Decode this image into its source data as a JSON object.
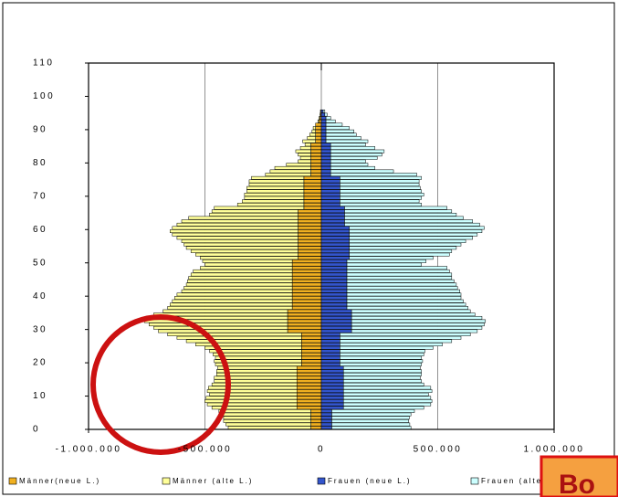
{
  "chart_data": {
    "type": "bar",
    "orientation": "horizontal",
    "stacked": true,
    "grid": true,
    "y": [
      0,
      1,
      2,
      3,
      4,
      5,
      6,
      7,
      8,
      9,
      10,
      11,
      12,
      13,
      14,
      15,
      16,
      17,
      18,
      19,
      20,
      21,
      22,
      23,
      24,
      25,
      26,
      27,
      28,
      29,
      30,
      31,
      32,
      33,
      34,
      35,
      36,
      37,
      38,
      39,
      40,
      41,
      42,
      43,
      44,
      45,
      46,
      47,
      48,
      49,
      50,
      51,
      52,
      53,
      54,
      55,
      56,
      57,
      58,
      59,
      60,
      61,
      62,
      63,
      64,
      65,
      66,
      67,
      68,
      69,
      70,
      71,
      72,
      73,
      74,
      75,
      76,
      77,
      78,
      79,
      80,
      81,
      82,
      83,
      84,
      85,
      86,
      87,
      88,
      89,
      90,
      91,
      92,
      93,
      94,
      95
    ],
    "xlim": [
      -1000000,
      1000000
    ],
    "xticks": [
      {
        "value": -1000000,
        "label": "-1.000.000"
      },
      {
        "value": -500000,
        "label": "-500.000"
      },
      0,
      {
        "value": 500000,
        "label": "500.000"
      },
      {
        "value": 1000000,
        "label": "1.000.000"
      }
    ],
    "ylim": [
      0,
      110
    ],
    "yticks": [
      0,
      10,
      20,
      30,
      40,
      50,
      60,
      70,
      80,
      90,
      100,
      110
    ],
    "series": [
      {
        "name": "Männer(neue L.)",
        "color": "#f0b020",
        "values": [
          -45000,
          -45000,
          -45000,
          -45000,
          -45000,
          -45000,
          -105000,
          -105000,
          -105000,
          -105000,
          -105000,
          -105000,
          -105000,
          -105000,
          -105000,
          -105000,
          -105000,
          -105000,
          -105000,
          -85000,
          -85000,
          -85000,
          -85000,
          -85000,
          -85000,
          -85000,
          -85000,
          -85000,
          -85000,
          -145000,
          -145000,
          -145000,
          -145000,
          -145000,
          -145000,
          -145000,
          -125000,
          -125000,
          -125000,
          -125000,
          -125000,
          -125000,
          -125000,
          -125000,
          -125000,
          -125000,
          -125000,
          -125000,
          -125000,
          -125000,
          -125000,
          -100000,
          -100000,
          -100000,
          -100000,
          -100000,
          -100000,
          -100000,
          -100000,
          -100000,
          -100000,
          -100000,
          -100000,
          -100000,
          -100000,
          -100000,
          -75000,
          -75000,
          -75000,
          -75000,
          -75000,
          -75000,
          -75000,
          -75000,
          -75000,
          -75000,
          -45000,
          -45000,
          -45000,
          -45000,
          -45000,
          -45000,
          -45000,
          -45000,
          -45000,
          -45000,
          -25000,
          -25000,
          -25000,
          -25000,
          -25000,
          -25000,
          -10000,
          -6000,
          -4000,
          -2000
        ]
      },
      {
        "name": "Männer (alte L.)",
        "color": "#ffff99",
        "values": [
          -355000,
          -365000,
          -375000,
          -375000,
          -380000,
          -395000,
          -365000,
          -385000,
          -395000,
          -390000,
          -375000,
          -385000,
          -380000,
          -365000,
          -355000,
          -355000,
          -345000,
          -345000,
          -340000,
          -370000,
          -375000,
          -370000,
          -380000,
          -395000,
          -415000,
          -455000,
          -495000,
          -535000,
          -575000,
          -555000,
          -575000,
          -595000,
          -615000,
          -605000,
          -575000,
          -535000,
          -535000,
          -525000,
          -515000,
          -505000,
          -495000,
          -475000,
          -465000,
          -455000,
          -450000,
          -445000,
          -435000,
          -425000,
          -395000,
          -375000,
          -385000,
          -420000,
          -440000,
          -460000,
          -480000,
          -490000,
          -500000,
          -520000,
          -540000,
          -550000,
          -540000,
          -520000,
          -500000,
          -470000,
          -380000,
          -370000,
          -385000,
          -285000,
          -265000,
          -255000,
          -255000,
          -245000,
          -245000,
          -235000,
          -235000,
          -225000,
          -195000,
          -175000,
          -155000,
          -105000,
          -55000,
          -45000,
          -55000,
          -65000,
          -45000,
          -25000,
          -55000,
          -35000,
          -25000,
          -15000,
          -10000,
          0,
          -5000,
          -4000,
          -2000,
          -2000
        ]
      },
      {
        "name": "Frauen (neue L.)",
        "color": "#3355cc",
        "values": [
          45000,
          45000,
          45000,
          45000,
          45000,
          45000,
          95000,
          95000,
          95000,
          95000,
          95000,
          95000,
          95000,
          95000,
          95000,
          95000,
          95000,
          95000,
          95000,
          80000,
          80000,
          80000,
          80000,
          80000,
          80000,
          80000,
          80000,
          80000,
          80000,
          130000,
          130000,
          130000,
          130000,
          130000,
          130000,
          130000,
          110000,
          110000,
          110000,
          110000,
          110000,
          110000,
          110000,
          110000,
          110000,
          110000,
          110000,
          110000,
          110000,
          110000,
          110000,
          120000,
          120000,
          120000,
          120000,
          120000,
          120000,
          120000,
          120000,
          120000,
          120000,
          100000,
          100000,
          100000,
          100000,
          100000,
          100000,
          80000,
          80000,
          80000,
          80000,
          80000,
          80000,
          80000,
          80000,
          80000,
          40000,
          40000,
          40000,
          40000,
          40000,
          40000,
          40000,
          40000,
          40000,
          40000,
          20000,
          20000,
          20000,
          20000,
          20000,
          20000,
          20000,
          20000,
          15000,
          8000
        ]
      },
      {
        "name": "Frauen (alte L.)",
        "color": "#ccffff",
        "values": [
          340000,
          335000,
          330000,
          333000,
          340000,
          355000,
          345000,
          375000,
          380000,
          375000,
          365000,
          380000,
          375000,
          345000,
          335000,
          330000,
          335000,
          335000,
          330000,
          350000,
          355000,
          350000,
          360000,
          365000,
          400000,
          440000,
          480000,
          520000,
          560000,
          540000,
          560000,
          570000,
          575000,
          560000,
          530000,
          510000,
          520000,
          510000,
          500000,
          490000,
          490000,
          485000,
          475000,
          470000,
          460000,
          450000,
          450000,
          440000,
          430000,
          320000,
          340000,
          360000,
          430000,
          440000,
          460000,
          480000,
          500000,
          530000,
          550000,
          570000,
          580000,
          580000,
          550000,
          510000,
          480000,
          460000,
          440000,
          350000,
          340000,
          350000,
          360000,
          350000,
          345000,
          340000,
          340000,
          350000,
          370000,
          270000,
          190000,
          160000,
          150000,
          200000,
          220000,
          230000,
          190000,
          150000,
          180000,
          150000,
          130000,
          120000,
          100000,
          70000,
          40000,
          20000,
          10000,
          7000
        ]
      }
    ],
    "annotation": "Bo"
  }
}
